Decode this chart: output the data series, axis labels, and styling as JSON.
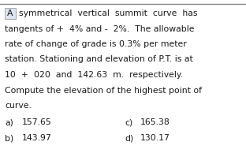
{
  "background_color": "#ffffff",
  "top_border_color": "#888888",
  "label_box": "A",
  "label_box_bg": "#dce6f1",
  "label_box_border": "#999999",
  "lines": [
    "A  symmetrical  vertical  summit  curve  has",
    "tangents of +  4% and -  2%.  The allowable",
    "rate of change of grade is 0.3% per meter",
    "station. Stationing and elevation of P.T. is at",
    "10  +  020  and  142.63  m.  respectively.",
    "Compute the elevation of the highest point of",
    "curve."
  ],
  "choices_left": [
    {
      "label": "a)",
      "value": "157.65"
    },
    {
      "label": "b)",
      "value": "143.97"
    }
  ],
  "choices_right": [
    {
      "label": "c)",
      "value": "165.38"
    },
    {
      "label": "d)",
      "value": "130.17"
    }
  ],
  "font_size": 7.8,
  "text_color": "#1a1a1a",
  "font_family": "DejaVu Sans"
}
